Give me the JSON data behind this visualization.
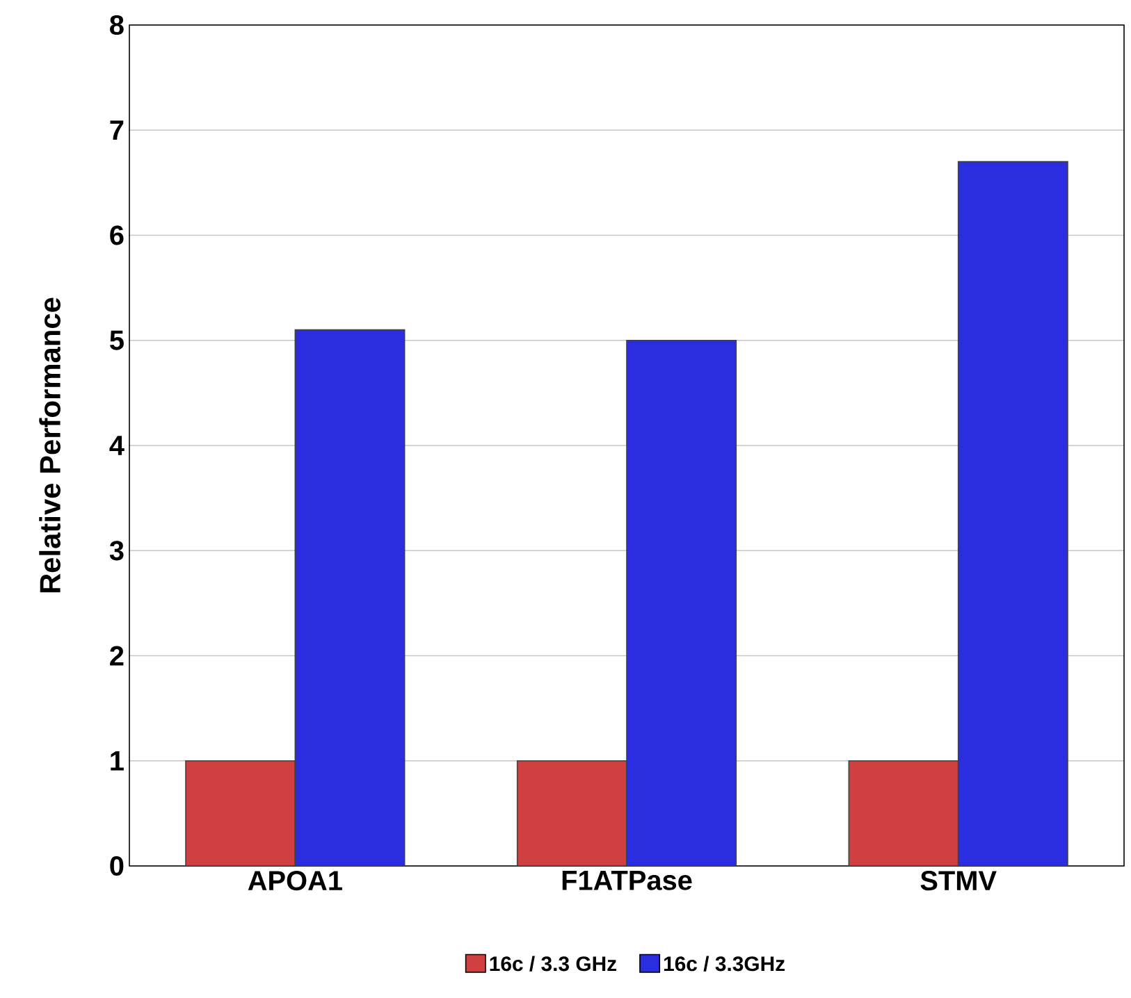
{
  "chart_data": {
    "type": "bar",
    "ylabel": "Relative Performance",
    "categories": [
      "APOA1",
      "F1ATPase",
      "STMV"
    ],
    "series": [
      {
        "name": "16c / 3.3 GHz",
        "color": "#d04040",
        "values": [
          1,
          1,
          1
        ]
      },
      {
        "name": "16c / 3.3GHz",
        "color": "#2a2ee0",
        "values": [
          5.1,
          5.0,
          6.7
        ]
      }
    ],
    "ylim": [
      0,
      8
    ],
    "yticks": [
      0,
      1,
      2,
      3,
      4,
      5,
      6,
      7,
      8
    ],
    "grid": "y",
    "legend": "bottom"
  }
}
